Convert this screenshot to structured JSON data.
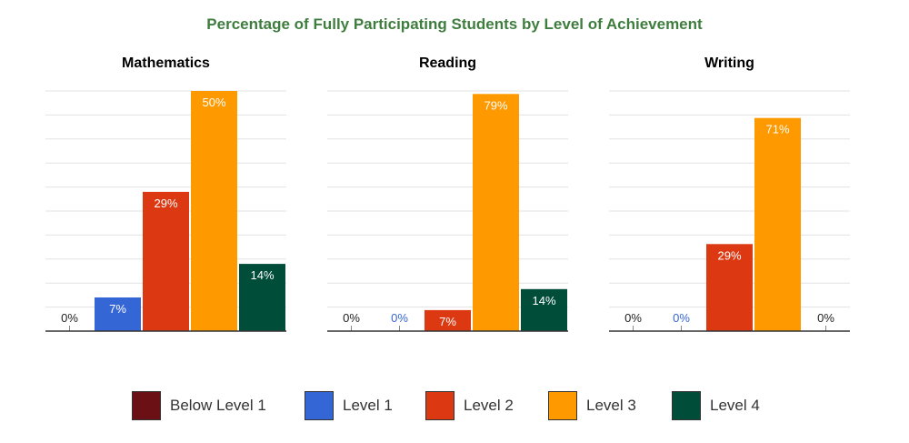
{
  "title": "Percentage of Fully Participating Students by Level of Achievement",
  "colors": {
    "title": "#3f7d3f",
    "Below Level 1": "#6b1014",
    "Level 1": "#3566d6",
    "Level 2": "#dc3912",
    "Level 3": "#ff9900",
    "Level 4": "#004d3a"
  },
  "legend": [
    "Below Level 1",
    "Level 1",
    "Level 2",
    "Level 3",
    "Level 4"
  ],
  "chart_data": [
    {
      "type": "bar",
      "title": "Mathematics",
      "categories": [
        "Below Level 1",
        "Level 1",
        "Level 2",
        "Level 3",
        "Level 4"
      ],
      "values": [
        0,
        7,
        29,
        50,
        14
      ],
      "labels": [
        "0%",
        "7%",
        "29%",
        "50%",
        "14%"
      ],
      "ylim": [
        0,
        50
      ],
      "grid": true
    },
    {
      "type": "bar",
      "title": "Reading",
      "categories": [
        "Below Level 1",
        "Level 1",
        "Level 2",
        "Level 3",
        "Level 4"
      ],
      "values": [
        0,
        0,
        7,
        79,
        14
      ],
      "labels": [
        "0%",
        "0%",
        "7%",
        "79%",
        "14%"
      ],
      "ylim": [
        0,
        80
      ],
      "grid": true
    },
    {
      "type": "bar",
      "title": "Writing",
      "categories": [
        "Below Level 1",
        "Level 1",
        "Level 2",
        "Level 3",
        "Level 4"
      ],
      "values": [
        0,
        0,
        29,
        71,
        0
      ],
      "labels": [
        "0%",
        "0%",
        "29%",
        "71%",
        "0%"
      ],
      "ylim": [
        0,
        80
      ],
      "grid": true
    }
  ]
}
